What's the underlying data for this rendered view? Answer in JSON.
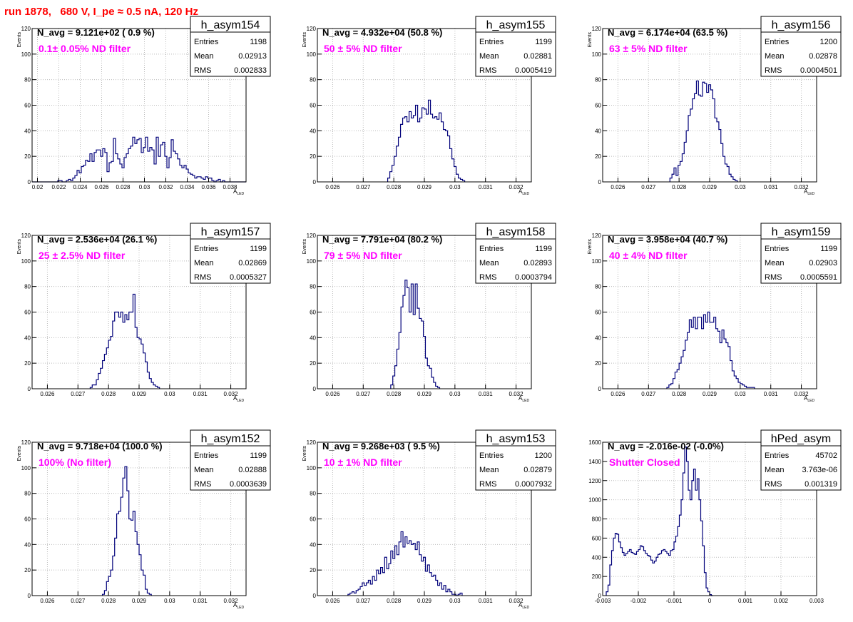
{
  "page_title": "run 1878,   680 V, I_pe ≈ 0.5 nA, 120 Hz",
  "chart_data": [
    {
      "type": "histogram",
      "name": "h_asym154",
      "stats": {
        "Entries": "1198",
        "Mean": "0.02913",
        "RMS": "0.002833"
      },
      "n_avg": "N_avg = 9.121e+02 ( 0.9 %)",
      "filter": "0.1± 0.05% ND filter",
      "ylabel": "Events",
      "xlabel": "A",
      "xlabel_sub": "LED",
      "xlim": [
        0.0195,
        0.0395
      ],
      "ylim": [
        0,
        120
      ],
      "xticks": [
        0.02,
        0.022,
        0.024,
        0.026,
        0.028,
        0.03,
        0.032,
        0.034,
        0.036,
        0.038
      ],
      "xtick_labels": [
        "0.02",
        "0.022",
        "0.024",
        "0.026",
        "0.028",
        "0.03",
        "0.032",
        "0.034",
        "0.036",
        "0.038"
      ],
      "yticks": [
        0,
        20,
        40,
        60,
        80,
        100,
        120
      ],
      "ytick_labels": [
        "0",
        "20",
        "40",
        "60",
        "80",
        "100",
        "120"
      ],
      "bin_start": 0.0195,
      "bin_width": 0.0002,
      "values": [
        0,
        0,
        0,
        0,
        0,
        0,
        0,
        0,
        0,
        0,
        0,
        0,
        1,
        1,
        0,
        0,
        1,
        2,
        1,
        3,
        5,
        9,
        7,
        12,
        13,
        17,
        16,
        22,
        16,
        23,
        25,
        25,
        20,
        26,
        23,
        8,
        15,
        16,
        34,
        22,
        18,
        14,
        11,
        19,
        22,
        26,
        28,
        35,
        30,
        33,
        34,
        23,
        27,
        35,
        24,
        27,
        25,
        14,
        35,
        20,
        29,
        31,
        20,
        11,
        19,
        33,
        24,
        22,
        18,
        13,
        11,
        13,
        10,
        7,
        6,
        5,
        3,
        4,
        4,
        3,
        2,
        4,
        3,
        3,
        1,
        0,
        1,
        2,
        0,
        1,
        0,
        0,
        0,
        0,
        0,
        0,
        0,
        0,
        0,
        0
      ]
    },
    {
      "type": "histogram",
      "name": "h_asym155",
      "stats": {
        "Entries": "1199",
        "Mean": "0.02881",
        "RMS": "0.0005419"
      },
      "n_avg": "N_avg = 4.932e+04 (50.8 %)",
      "filter": "50 ± 5% ND filter",
      "ylabel": "Events",
      "xlabel": "A",
      "xlabel_sub": "LED",
      "xlim": [
        0.0255,
        0.0325
      ],
      "ylim": [
        0,
        120
      ],
      "xticks": [
        0.026,
        0.027,
        0.028,
        0.029,
        0.03,
        0.031,
        0.032
      ],
      "xtick_labels": [
        "0.026",
        "0.027",
        "0.028",
        "0.029",
        "0.03",
        "0.031",
        "0.032"
      ],
      "yticks": [
        0,
        20,
        40,
        60,
        80,
        100,
        120
      ],
      "ytick_labels": [
        "0",
        "20",
        "40",
        "60",
        "80",
        "100",
        "120"
      ],
      "bin_start": 0.0278,
      "bin_width": 7e-05,
      "values": [
        3,
        8,
        13,
        20,
        28,
        35,
        45,
        50,
        51,
        47,
        55,
        50,
        52,
        60,
        47,
        50,
        58,
        57,
        53,
        64,
        53,
        50,
        51,
        49,
        54,
        47,
        41,
        40,
        36,
        26,
        18,
        12,
        6,
        3,
        2,
        1
      ]
    },
    {
      "type": "histogram",
      "name": "h_asym156",
      "stats": {
        "Entries": "1200",
        "Mean": "0.02878",
        "RMS": "0.0004501"
      },
      "n_avg": "N_avg = 6.174e+04 (63.5 %)",
      "filter": "63 ± 5% ND filter",
      "ylabel": "Events",
      "xlabel": "A",
      "xlabel_sub": "LED",
      "xlim": [
        0.0255,
        0.0325
      ],
      "ylim": [
        0,
        120
      ],
      "xticks": [
        0.026,
        0.027,
        0.028,
        0.029,
        0.03,
        0.031,
        0.032
      ],
      "xtick_labels": [
        "0.026",
        "0.027",
        "0.028",
        "0.029",
        "0.03",
        "0.031",
        "0.032"
      ],
      "yticks": [
        0,
        20,
        40,
        60,
        80,
        100,
        120
      ],
      "ytick_labels": [
        "0",
        "20",
        "40",
        "60",
        "80",
        "100",
        "120"
      ],
      "bin_start": 0.0277,
      "bin_width": 6.67e-05,
      "values": [
        3,
        6,
        11,
        5,
        13,
        16,
        22,
        31,
        40,
        52,
        57,
        65,
        69,
        79,
        68,
        67,
        78,
        77,
        70,
        76,
        72,
        65,
        50,
        47,
        41,
        30,
        20,
        14,
        12,
        6,
        4,
        2,
        1
      ]
    },
    {
      "type": "histogram",
      "name": "h_asym157",
      "stats": {
        "Entries": "1199",
        "Mean": "0.02869",
        "RMS": "0.0005327"
      },
      "n_avg": "N_avg = 2.536e+04 (26.1 %)",
      "filter": "25 ± 2.5% ND filter",
      "ylabel": "Events",
      "xlabel": "A",
      "xlabel_sub": "LED",
      "xlim": [
        0.0255,
        0.0325
      ],
      "ylim": [
        0,
        120
      ],
      "xticks": [
        0.026,
        0.027,
        0.028,
        0.029,
        0.03,
        0.031,
        0.032
      ],
      "xtick_labels": [
        "0.026",
        "0.027",
        "0.028",
        "0.029",
        "0.03",
        "0.031",
        "0.032"
      ],
      "yticks": [
        0,
        20,
        40,
        60,
        80,
        100,
        120
      ],
      "ytick_labels": [
        "0",
        "20",
        "40",
        "60",
        "80",
        "100",
        "120"
      ],
      "bin_start": 0.0274,
      "bin_width": 6.67e-05,
      "values": [
        1,
        3,
        3,
        7,
        12,
        16,
        22,
        27,
        32,
        38,
        41,
        53,
        60,
        60,
        56,
        60,
        52,
        58,
        54,
        60,
        60,
        74,
        48,
        40,
        39,
        35,
        28,
        21,
        13,
        8,
        5,
        3,
        2,
        1
      ]
    },
    {
      "type": "histogram",
      "name": "h_asym158",
      "stats": {
        "Entries": "1199",
        "Mean": "0.02893",
        "RMS": "0.0003794"
      },
      "n_avg": "N_avg = 7.791e+04 (80.2 %)",
      "filter": "79 ± 5% ND filter",
      "ylabel": "Events",
      "xlabel": "A",
      "xlabel_sub": "LED",
      "xlim": [
        0.0255,
        0.0325
      ],
      "ylim": [
        0,
        120
      ],
      "xticks": [
        0.026,
        0.027,
        0.028,
        0.029,
        0.03,
        0.031,
        0.032
      ],
      "xtick_labels": [
        "0.026",
        "0.027",
        "0.028",
        "0.029",
        "0.03",
        "0.031",
        "0.032"
      ],
      "yticks": [
        0,
        20,
        40,
        60,
        80,
        100,
        120
      ],
      "ytick_labels": [
        "0",
        "20",
        "40",
        "60",
        "80",
        "100",
        "120"
      ],
      "bin_start": 0.0279,
      "bin_width": 6.67e-05,
      "values": [
        3,
        10,
        18,
        31,
        44,
        64,
        73,
        85,
        79,
        60,
        82,
        58,
        82,
        63,
        55,
        53,
        41,
        24,
        18,
        16,
        9,
        5,
        2,
        1
      ]
    },
    {
      "type": "histogram",
      "name": "h_asym159",
      "stats": {
        "Entries": "1199",
        "Mean": "0.02903",
        "RMS": "0.0005591"
      },
      "n_avg": "N_avg = 3.958e+04 (40.7 %)",
      "filter": "40 ± 4% ND filter",
      "ylabel": "Events",
      "xlabel": "A",
      "xlabel_sub": "LED",
      "xlim": [
        0.0255,
        0.0325
      ],
      "ylim": [
        0,
        120
      ],
      "xticks": [
        0.026,
        0.027,
        0.028,
        0.029,
        0.03,
        0.031,
        0.032
      ],
      "xtick_labels": [
        "0.026",
        "0.027",
        "0.028",
        "0.029",
        "0.03",
        "0.031",
        "0.032"
      ],
      "yticks": [
        0,
        20,
        40,
        60,
        80,
        100,
        120
      ],
      "ytick_labels": [
        "0",
        "20",
        "40",
        "60",
        "80",
        "100",
        "120"
      ],
      "bin_start": 0.0276,
      "bin_width": 6.67e-05,
      "values": [
        1,
        3,
        4,
        8,
        13,
        15,
        20,
        25,
        30,
        38,
        44,
        54,
        48,
        56,
        47,
        56,
        56,
        47,
        58,
        52,
        60,
        52,
        52,
        56,
        47,
        45,
        36,
        46,
        39,
        36,
        33,
        22,
        14,
        10,
        8,
        5,
        4,
        3,
        2,
        1,
        1,
        1,
        1
      ]
    },
    {
      "type": "histogram",
      "name": "h_asym152",
      "stats": {
        "Entries": "1199",
        "Mean": "0.02888",
        "RMS": "0.0003639"
      },
      "n_avg": "N_avg = 9.718e+04 (100.0 %)",
      "filter": "100% (No filter)",
      "ylabel": "Events",
      "xlabel": "A",
      "xlabel_sub": "LED",
      "xlim": [
        0.0255,
        0.0325
      ],
      "ylim": [
        0,
        120
      ],
      "xticks": [
        0.026,
        0.027,
        0.028,
        0.029,
        0.03,
        0.031,
        0.032
      ],
      "xtick_labels": [
        "0.026",
        "0.027",
        "0.028",
        "0.029",
        "0.03",
        "0.031",
        "0.032"
      ],
      "yticks": [
        0,
        20,
        40,
        60,
        80,
        100,
        120
      ],
      "ytick_labels": [
        "0",
        "20",
        "40",
        "60",
        "80",
        "100",
        "120"
      ],
      "bin_start": 0.0278,
      "bin_width": 6.67e-05,
      "values": [
        1,
        4,
        11,
        15,
        20,
        31,
        45,
        64,
        66,
        77,
        92,
        101,
        82,
        60,
        59,
        66,
        50,
        40,
        32,
        20,
        16,
        5,
        2,
        1
      ]
    },
    {
      "type": "histogram",
      "name": "h_asym153",
      "stats": {
        "Entries": "1200",
        "Mean": "0.02879",
        "RMS": "0.0007932"
      },
      "n_avg": "N_avg = 9.268e+03 ( 9.5 %)",
      "filter": "10 ± 1% ND filter",
      "ylabel": "Events",
      "xlabel": "A",
      "xlabel_sub": "LED",
      "xlim": [
        0.0255,
        0.0325
      ],
      "ylim": [
        0,
        120
      ],
      "xticks": [
        0.026,
        0.027,
        0.028,
        0.029,
        0.03,
        0.031,
        0.032
      ],
      "xtick_labels": [
        "0.026",
        "0.027",
        "0.028",
        "0.029",
        "0.03",
        "0.031",
        "0.032"
      ],
      "yticks": [
        0,
        20,
        40,
        60,
        80,
        100,
        120
      ],
      "ytick_labels": [
        "0",
        "20",
        "40",
        "60",
        "80",
        "100",
        "120"
      ],
      "bin_start": 0.0265,
      "bin_width": 6.67e-05,
      "values": [
        1,
        2,
        3,
        2,
        4,
        5,
        7,
        10,
        8,
        10,
        12,
        9,
        15,
        12,
        20,
        17,
        22,
        18,
        30,
        21,
        25,
        35,
        29,
        39,
        32,
        42,
        50,
        38,
        46,
        41,
        43,
        40,
        41,
        36,
        42,
        32,
        27,
        30,
        19,
        24,
        18,
        15,
        16,
        12,
        8,
        10,
        5,
        8,
        3,
        5,
        3,
        1,
        1,
        0,
        1,
        2
      ]
    },
    {
      "type": "histogram",
      "name": "hPed_asym",
      "stats": {
        "Entries": "45702",
        "Mean": "3.763e-06",
        "RMS": "0.001319"
      },
      "n_avg": "N_avg = -2.016e-02 (-0.0%)",
      "filter": "Shutter Closed",
      "ylabel": "",
      "xlabel": "",
      "xlabel_sub": "",
      "xlim": [
        -0.003,
        0.003
      ],
      "ylim": [
        0,
        1600
      ],
      "xticks": [
        -0.003,
        -0.002,
        -0.001,
        0,
        0.001,
        0.002,
        0.003
      ],
      "xtick_labels": [
        "-0.003",
        "-0.002",
        "-0.001",
        "0",
        "0.001",
        "0.002",
        "0.003"
      ],
      "yticks": [
        0,
        200,
        400,
        600,
        800,
        1000,
        1200,
        1400,
        1600
      ],
      "ytick_labels": [
        "0",
        "200",
        "400",
        "600",
        "800",
        "1000",
        "1200",
        "1400",
        "1600"
      ],
      "bin_start": -0.0029,
      "bin_width": 5e-05,
      "values": [
        40,
        110,
        320,
        470,
        600,
        650,
        640,
        560,
        500,
        450,
        420,
        440,
        460,
        480,
        450,
        440,
        430,
        460,
        480,
        520,
        510,
        470,
        440,
        420,
        410,
        370,
        340,
        360,
        400,
        430,
        440,
        470,
        480,
        460,
        440,
        420,
        470,
        480,
        560,
        620,
        720,
        840,
        1000,
        1280,
        1550,
        1400,
        1100,
        1000,
        1200,
        1320,
        1100,
        1220,
        1000,
        780,
        520,
        240,
        80,
        40,
        10,
        0
      ]
    }
  ]
}
